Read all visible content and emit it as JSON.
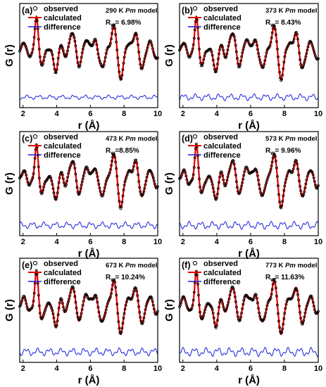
{
  "chart_data": {
    "type": "line",
    "layout": "3x2 grid of G(r) fits",
    "legend_labels": [
      "observed",
      "calculated",
      "difference"
    ],
    "colors": {
      "observed": "#000000",
      "calculated": "#e00000",
      "difference": "#1a1adc"
    },
    "panels": [
      {
        "letter": "(a)",
        "temp_label": "290 K",
        "model_label": "Pm",
        "model_suffix": "model",
        "rw_label": "R",
        "rw_sub": "w",
        "rw_value": "= 6.98%",
        "xlabel": "r (Å)",
        "ylabel": "G (r)",
        "xlim": [
          1.8,
          10
        ],
        "xticks": [
          "2",
          "4",
          "6",
          "8",
          "10"
        ],
        "xtick_values": [
          2,
          4,
          6,
          8,
          10
        ],
        "peaks": [
          [
            2.05,
            0.28,
            0.13
          ],
          [
            2.35,
            -0.12,
            0.1
          ],
          [
            2.8,
            1.0,
            0.1
          ],
          [
            3.1,
            -0.35,
            0.12
          ],
          [
            3.55,
            0.1,
            0.14
          ],
          [
            3.95,
            -0.55,
            0.12
          ],
          [
            4.25,
            0.25,
            0.12
          ],
          [
            4.5,
            -0.18,
            0.1
          ],
          [
            4.95,
            0.55,
            0.18
          ],
          [
            5.3,
            -0.45,
            0.13
          ],
          [
            5.75,
            0.35,
            0.14
          ],
          [
            6.05,
            0.15,
            0.1
          ],
          [
            6.3,
            0.35,
            0.11
          ],
          [
            6.7,
            -0.4,
            0.16
          ],
          [
            7.05,
            0.15,
            0.12
          ],
          [
            7.4,
            0.75,
            0.13
          ],
          [
            7.8,
            -0.75,
            0.13
          ],
          [
            8.3,
            0.25,
            0.16
          ],
          [
            8.7,
            0.55,
            0.13
          ],
          [
            9.05,
            -0.45,
            0.14
          ],
          [
            9.55,
            0.3,
            0.15
          ],
          [
            9.9,
            -0.2,
            0.12
          ]
        ],
        "diff_amp": 0.04
      },
      {
        "letter": "(b)",
        "temp_label": "373 K",
        "model_label": "Pm",
        "model_suffix": "model",
        "rw_label": "R",
        "rw_sub": "w",
        "rw_value": "= 8.43%",
        "xlabel": "r (Å)",
        "ylabel": "G (r)",
        "xlim": [
          1.8,
          10
        ],
        "xticks": [
          "2",
          "4",
          "6",
          "8",
          "10"
        ],
        "xtick_values": [
          2,
          4,
          6,
          8,
          10
        ],
        "peaks": [
          [
            2.05,
            0.28,
            0.13
          ],
          [
            2.35,
            -0.12,
            0.1
          ],
          [
            2.8,
            1.0,
            0.1
          ],
          [
            3.1,
            -0.35,
            0.12
          ],
          [
            3.55,
            0.1,
            0.14
          ],
          [
            3.95,
            -0.55,
            0.12
          ],
          [
            4.25,
            0.25,
            0.12
          ],
          [
            4.5,
            -0.18,
            0.1
          ],
          [
            4.95,
            0.55,
            0.18
          ],
          [
            5.3,
            -0.45,
            0.13
          ],
          [
            5.75,
            0.35,
            0.14
          ],
          [
            6.05,
            0.15,
            0.1
          ],
          [
            6.3,
            0.35,
            0.11
          ],
          [
            6.7,
            -0.4,
            0.16
          ],
          [
            7.05,
            0.15,
            0.12
          ],
          [
            7.4,
            0.75,
            0.13
          ],
          [
            7.8,
            -0.75,
            0.13
          ],
          [
            8.3,
            0.25,
            0.16
          ],
          [
            8.7,
            0.55,
            0.13
          ],
          [
            9.05,
            -0.45,
            0.14
          ],
          [
            9.55,
            0.3,
            0.15
          ],
          [
            9.9,
            -0.2,
            0.12
          ]
        ],
        "diff_amp": 0.06
      },
      {
        "letter": "(c)",
        "temp_label": "473 K",
        "model_label": "Pm",
        "model_suffix": "model",
        "rw_label": "R",
        "rw_sub": "w",
        "rw_value": "=8.85%",
        "xlabel": "r (Å)",
        "ylabel": "G (r)",
        "xlim": [
          1.8,
          10
        ],
        "xticks": [
          "2",
          "4",
          "6",
          "8",
          "10"
        ],
        "xtick_values": [
          2,
          4,
          6,
          8,
          10
        ],
        "peaks": [
          [
            2.05,
            0.28,
            0.13
          ],
          [
            2.35,
            -0.12,
            0.1
          ],
          [
            2.8,
            1.0,
            0.1
          ],
          [
            3.1,
            -0.35,
            0.12
          ],
          [
            3.55,
            0.1,
            0.14
          ],
          [
            3.95,
            -0.55,
            0.12
          ],
          [
            4.25,
            0.25,
            0.12
          ],
          [
            4.5,
            -0.18,
            0.1
          ],
          [
            4.95,
            0.55,
            0.18
          ],
          [
            5.3,
            -0.45,
            0.13
          ],
          [
            5.75,
            0.35,
            0.14
          ],
          [
            6.05,
            0.15,
            0.1
          ],
          [
            6.3,
            0.35,
            0.11
          ],
          [
            6.7,
            -0.4,
            0.16
          ],
          [
            7.05,
            0.15,
            0.12
          ],
          [
            7.4,
            0.75,
            0.13
          ],
          [
            7.8,
            -0.75,
            0.13
          ],
          [
            8.3,
            0.25,
            0.16
          ],
          [
            8.7,
            0.55,
            0.13
          ],
          [
            9.05,
            -0.45,
            0.14
          ],
          [
            9.55,
            0.3,
            0.15
          ],
          [
            9.9,
            -0.2,
            0.12
          ]
        ],
        "diff_amp": 0.06
      },
      {
        "letter": "(d)",
        "temp_label": "573 K",
        "model_label": "Pm",
        "model_suffix": "model",
        "rw_label": "R",
        "rw_sub": "w",
        "rw_value": "= 9.96%",
        "xlabel": "r (Å)",
        "ylabel": "G (r)",
        "xlim": [
          1.8,
          10
        ],
        "xticks": [
          "2",
          "4",
          "6",
          "8",
          "10"
        ],
        "xtick_values": [
          2,
          4,
          6,
          8,
          10
        ],
        "peaks": [
          [
            2.05,
            0.28,
            0.13
          ],
          [
            2.35,
            -0.12,
            0.1
          ],
          [
            2.8,
            1.0,
            0.1
          ],
          [
            3.1,
            -0.35,
            0.12
          ],
          [
            3.55,
            0.1,
            0.14
          ],
          [
            3.95,
            -0.55,
            0.12
          ],
          [
            4.25,
            0.25,
            0.12
          ],
          [
            4.5,
            -0.18,
            0.1
          ],
          [
            4.95,
            0.55,
            0.18
          ],
          [
            5.3,
            -0.45,
            0.13
          ],
          [
            5.75,
            0.35,
            0.14
          ],
          [
            6.05,
            0.15,
            0.1
          ],
          [
            6.3,
            0.35,
            0.11
          ],
          [
            6.7,
            -0.4,
            0.16
          ],
          [
            7.05,
            0.15,
            0.12
          ],
          [
            7.4,
            0.75,
            0.13
          ],
          [
            7.8,
            -0.75,
            0.13
          ],
          [
            8.3,
            0.25,
            0.16
          ],
          [
            8.7,
            0.55,
            0.13
          ],
          [
            9.05,
            -0.45,
            0.14
          ],
          [
            9.55,
            0.3,
            0.15
          ],
          [
            9.9,
            -0.2,
            0.12
          ]
        ],
        "diff_amp": 0.07
      },
      {
        "letter": "(e)",
        "temp_label": "673 K",
        "model_label": "Pm",
        "model_suffix": "model",
        "rw_label": "R",
        "rw_sub": "w",
        "rw_value": "= 10.24%",
        "xlabel": "r (Å)",
        "ylabel": "G (r)",
        "xlim": [
          1.8,
          10
        ],
        "xticks": [
          "2",
          "4",
          "6",
          "8",
          "10"
        ],
        "xtick_values": [
          2,
          4,
          6,
          8,
          10
        ],
        "peaks": [
          [
            2.05,
            0.28,
            0.13
          ],
          [
            2.35,
            -0.12,
            0.1
          ],
          [
            2.8,
            1.0,
            0.1
          ],
          [
            3.1,
            -0.35,
            0.12
          ],
          [
            3.55,
            0.1,
            0.14
          ],
          [
            3.95,
            -0.55,
            0.12
          ],
          [
            4.25,
            0.25,
            0.12
          ],
          [
            4.5,
            -0.18,
            0.1
          ],
          [
            4.95,
            0.55,
            0.18
          ],
          [
            5.3,
            -0.45,
            0.13
          ],
          [
            5.75,
            0.35,
            0.14
          ],
          [
            6.05,
            0.15,
            0.1
          ],
          [
            6.3,
            0.35,
            0.11
          ],
          [
            6.7,
            -0.4,
            0.16
          ],
          [
            7.05,
            0.15,
            0.12
          ],
          [
            7.4,
            0.75,
            0.13
          ],
          [
            7.8,
            -0.75,
            0.13
          ],
          [
            8.3,
            0.25,
            0.16
          ],
          [
            8.7,
            0.55,
            0.13
          ],
          [
            9.05,
            -0.45,
            0.14
          ],
          [
            9.55,
            0.3,
            0.15
          ],
          [
            9.9,
            -0.2,
            0.12
          ]
        ],
        "diff_amp": 0.07
      },
      {
        "letter": "(f)",
        "temp_label": "773 K",
        "model_label": "Pm",
        "model_suffix": "model",
        "rw_label": "R",
        "rw_sub": "w",
        "rw_value": "= 11.63%",
        "xlabel": "r (Å)",
        "ylabel": "G (r)",
        "xlim": [
          1.8,
          10
        ],
        "xticks": [
          "2",
          "4",
          "6",
          "8",
          "10"
        ],
        "xtick_values": [
          2,
          4,
          6,
          8,
          10
        ],
        "peaks": [
          [
            2.05,
            0.28,
            0.13
          ],
          [
            2.35,
            -0.12,
            0.1
          ],
          [
            2.8,
            1.0,
            0.1
          ],
          [
            3.1,
            -0.35,
            0.12
          ],
          [
            3.55,
            0.1,
            0.14
          ],
          [
            3.95,
            -0.55,
            0.12
          ],
          [
            4.25,
            0.25,
            0.12
          ],
          [
            4.5,
            -0.18,
            0.1
          ],
          [
            4.95,
            0.55,
            0.18
          ],
          [
            5.3,
            -0.45,
            0.13
          ],
          [
            5.75,
            0.35,
            0.14
          ],
          [
            6.05,
            0.15,
            0.1
          ],
          [
            6.3,
            0.35,
            0.11
          ],
          [
            6.7,
            -0.4,
            0.16
          ],
          [
            7.05,
            0.15,
            0.12
          ],
          [
            7.4,
            0.75,
            0.13
          ],
          [
            7.8,
            -0.75,
            0.13
          ],
          [
            8.3,
            0.25,
            0.16
          ],
          [
            8.7,
            0.55,
            0.13
          ],
          [
            9.05,
            -0.45,
            0.14
          ],
          [
            9.55,
            0.3,
            0.15
          ],
          [
            9.9,
            -0.2,
            0.12
          ]
        ],
        "diff_amp": 0.08
      }
    ]
  }
}
